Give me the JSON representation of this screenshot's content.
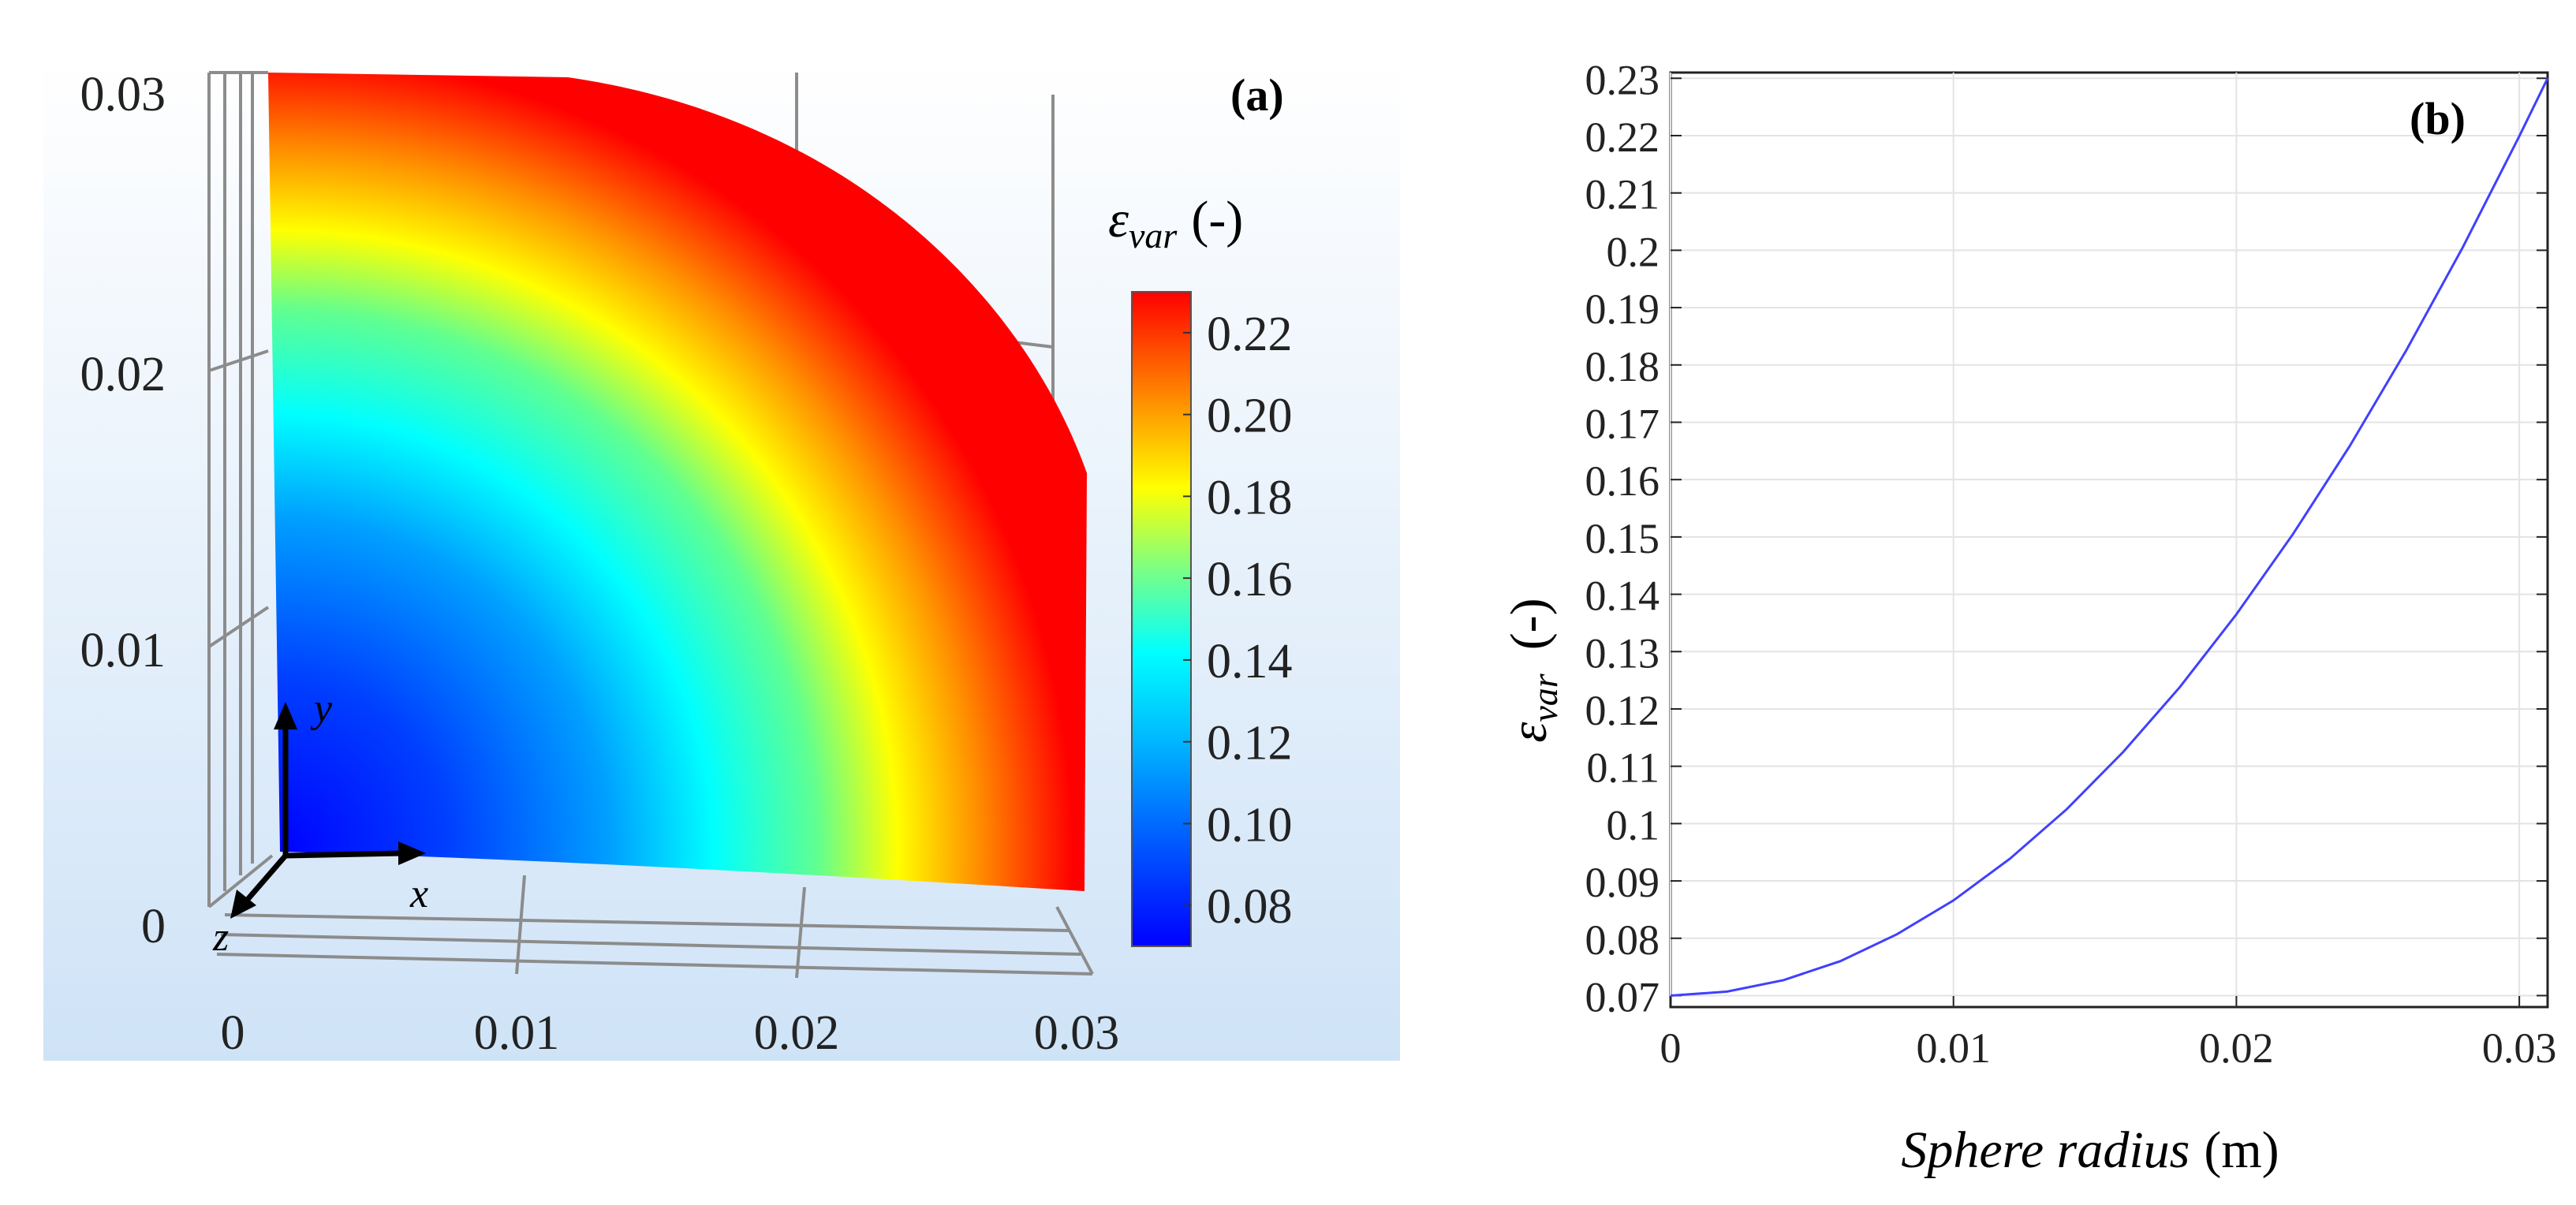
{
  "chart_data": [
    {
      "type": "heatmap",
      "panel_label": "(a)",
      "description_axes": {
        "x_label": "x",
        "y_label": "y",
        "z_label": "z"
      },
      "x_ticks": [
        "0",
        "0.01",
        "0.02",
        "0.03"
      ],
      "y_ticks": [
        "0",
        "0.01",
        "0.02",
        "0.03"
      ],
      "xlim": [
        0,
        0.031
      ],
      "ylim": [
        0,
        0.031
      ],
      "field": "epsilon_var over quarter sphere, increasing with radius",
      "colorbar": {
        "title_symbol": "ε",
        "title_subscript": "var",
        "title_unit": "(-)",
        "ticks": [
          "0.22",
          "0.20",
          "0.18",
          "0.16",
          "0.14",
          "0.12",
          "0.10",
          "0.08"
        ],
        "tick_values": [
          0.22,
          0.2,
          0.18,
          0.16,
          0.14,
          0.12,
          0.1,
          0.08
        ],
        "range": [
          0.07,
          0.23
        ]
      },
      "colors": {
        "background": "#dfeefb",
        "grid": "#8c8c8c",
        "colormap": [
          "#0000ff",
          "#0080ff",
          "#00ffff",
          "#80ff80",
          "#ffff00",
          "#ff8000",
          "#ff0000"
        ]
      }
    },
    {
      "type": "line",
      "panel_label": "(b)",
      "xlabel_italic": "Sphere radius",
      "xlabel_unit": "(m)",
      "ylabel_symbol": "ε",
      "ylabel_subscript": "var",
      "ylabel_unit": "(-)",
      "xlim": [
        0,
        0.031
      ],
      "ylim": [
        0.068,
        0.231
      ],
      "x_ticks": [
        0,
        0.01,
        0.02,
        0.03
      ],
      "x_tick_labels": [
        "0",
        "0.01",
        "0.02",
        "0.03"
      ],
      "y_ticks": [
        0.07,
        0.08,
        0.09,
        0.1,
        0.11,
        0.12,
        0.13,
        0.14,
        0.15,
        0.16,
        0.17,
        0.18,
        0.19,
        0.2,
        0.21,
        0.22,
        0.23
      ],
      "y_tick_labels": [
        "0.07",
        "0.08",
        "0.09",
        "0.1",
        "0.11",
        "0.12",
        "0.13",
        "0.14",
        "0.15",
        "0.16",
        "0.17",
        "0.18",
        "0.19",
        "0.2",
        "0.21",
        "0.22",
        "0.23"
      ],
      "series": [
        {
          "name": "epsilon_var",
          "color": "#4040ff",
          "x": [
            0,
            0.002,
            0.004,
            0.006,
            0.008,
            0.01,
            0.012,
            0.014,
            0.016,
            0.018,
            0.02,
            0.022,
            0.024,
            0.026,
            0.028,
            0.03,
            0.031
          ],
          "y": [
            0.07,
            0.0707,
            0.0727,
            0.076,
            0.0807,
            0.0866,
            0.0939,
            0.1025,
            0.1125,
            0.1238,
            0.1365,
            0.1505,
            0.1658,
            0.1825,
            0.2005,
            0.2199,
            0.23
          ]
        }
      ],
      "grid": true
    }
  ]
}
